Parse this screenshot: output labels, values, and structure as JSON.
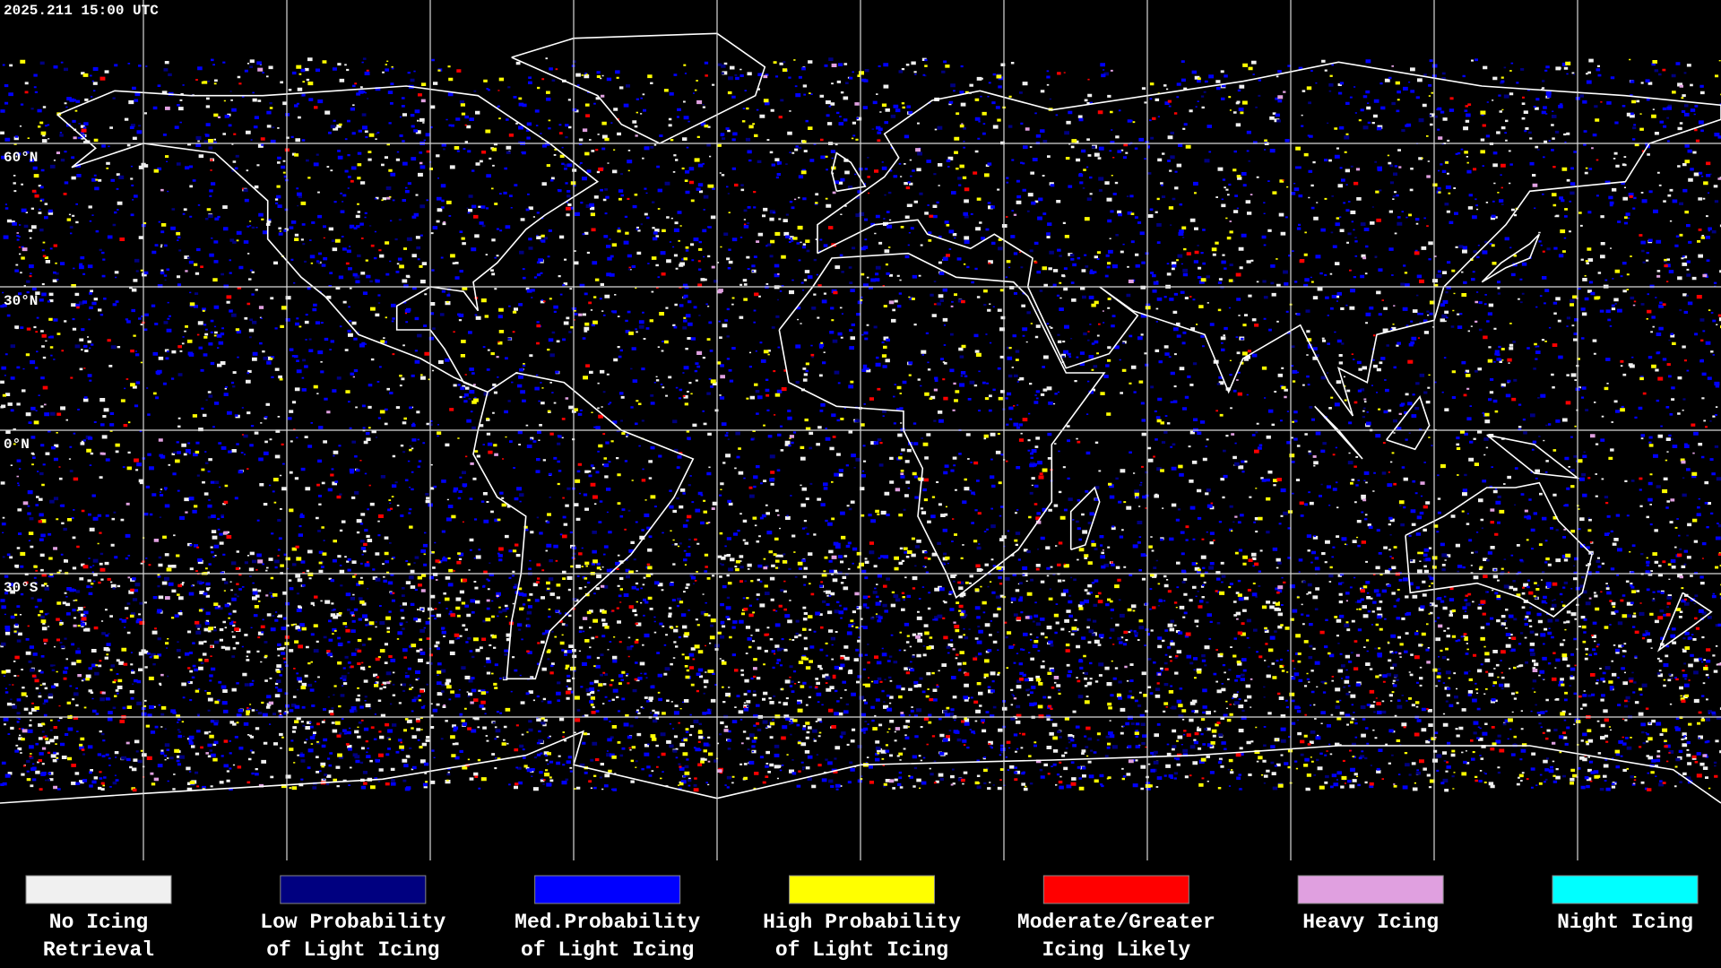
{
  "header": {
    "timestamp": "2025.211 15:00 UTC"
  },
  "map": {
    "latitude_labels": [
      "60°N",
      "30°N",
      "0°N",
      "30°S"
    ]
  },
  "legend": [
    {
      "lines": [
        "No Icing",
        "Retrieval"
      ],
      "color": "#f0f0f0"
    },
    {
      "lines": [
        "Low Probability",
        "of Light Icing"
      ],
      "color": "#000080"
    },
    {
      "lines": [
        "Med.Probability",
        "of Light Icing"
      ],
      "color": "#0000ff"
    },
    {
      "lines": [
        "High Probability",
        "of Light Icing"
      ],
      "color": "#ffff00"
    },
    {
      "lines": [
        "Moderate/Greater",
        "Icing Likely"
      ],
      "color": "#ff0000"
    },
    {
      "lines": [
        "Heavy Icing"
      ],
      "color": "#e0a0e0"
    },
    {
      "lines": [
        "Night Icing"
      ],
      "color": "#00ffff"
    }
  ]
}
